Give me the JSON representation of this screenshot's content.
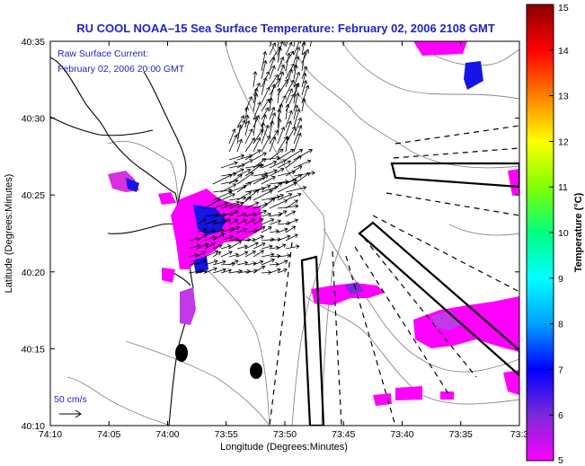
{
  "title": "RU COOL  NOAA–15  Sea Surface Temperature:  February 02, 2006 2108 GMT",
  "current_label": "Raw Surface Current:",
  "current_time": "February 02, 2006 20:00 GMT",
  "scale_label": "50 cm/s",
  "x_axis_label": "Longitude (Degrees:Minutes)",
  "y_axis_label": "Latitude (Degrees:Minutes)",
  "x_ticks": [
    "74:10",
    "74:05",
    "74:00",
    "73:55",
    "73:50",
    "73:45",
    "73:40",
    "73:35",
    "73:3"
  ],
  "y_ticks": [
    "40:35",
    "40:30",
    "40:25",
    "40:20",
    "40:15",
    "40:10"
  ],
  "colorbar": {
    "label": "Temperature (°C)",
    "ticks": [
      "15",
      "14",
      "13",
      "12",
      "11",
      "10",
      "9",
      "8",
      "7",
      "6",
      "5"
    ],
    "min": 5,
    "max": 15,
    "colors": [
      "#ff00ff",
      "#7a2ad8",
      "#0000ff",
      "#00a0ff",
      "#00ffff",
      "#00ff80",
      "#80ff00",
      "#ffff00",
      "#ff8000",
      "#ff0000",
      "#8b0000"
    ]
  },
  "colors": {
    "title": "#1f23c8",
    "coast": "#000000",
    "bathymetry": "#888888",
    "sst_warm_patch": "#ff00ff",
    "sst_cool_patch": "#1414e6"
  }
}
